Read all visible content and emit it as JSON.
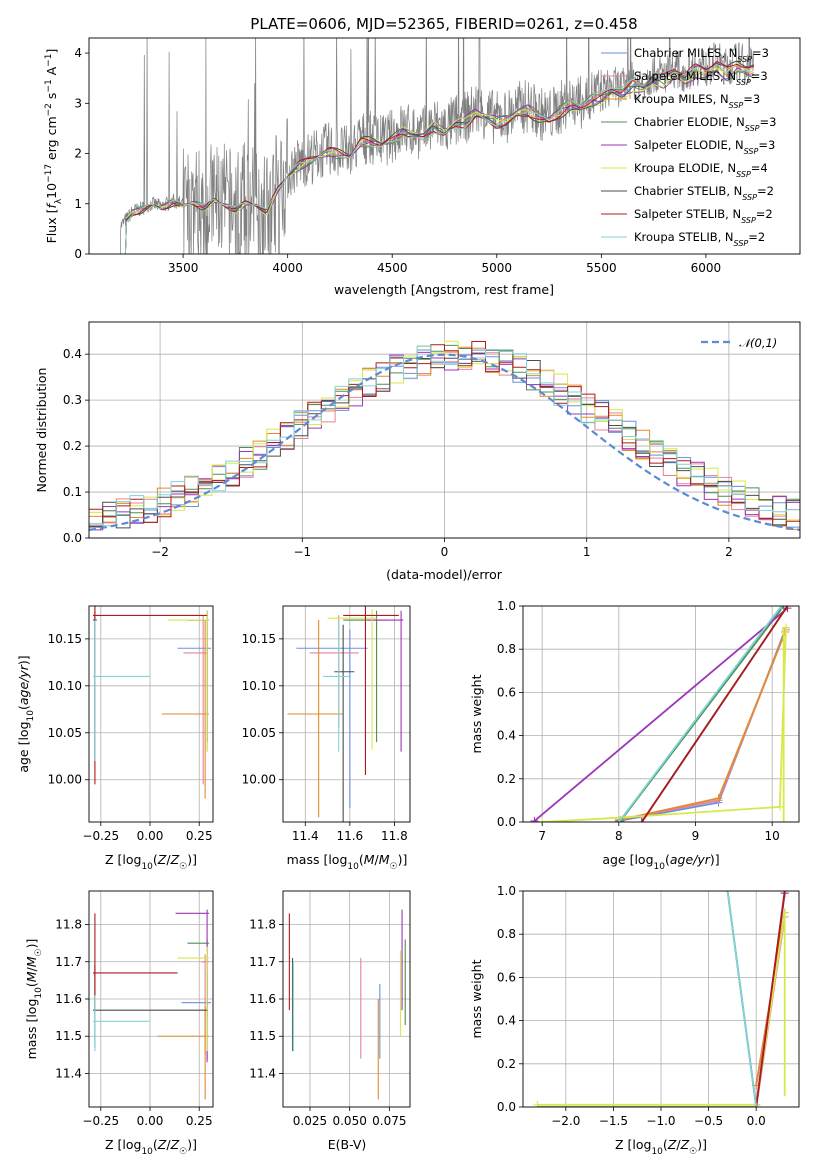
{
  "figure": {
    "title": "PLATE=0606, MJD=52365, FIBERID=0261, z=0.458"
  },
  "colors": {
    "Chabrier MILES": "#6a8fe0",
    "Salpeter MILES": "#e8829a",
    "Kroupa MILES": "#e28a2e",
    "Chabrier ELODIE": "#4f8f4f",
    "Salpeter ELODIE": "#9b36b8",
    "Kroupa ELODIE": "#d8e84a",
    "Chabrier STELIB": "#4d4d4d",
    "Salpeter STELIB": "#b01a1a",
    "Kroupa STELIB": "#7fd4d8",
    "data": "#808080",
    "gaussian": "#5b8ad6"
  },
  "chart_data": [
    {
      "id": "spectrum",
      "type": "line",
      "xlabel": "wavelength [Angstrom, rest frame]",
      "ylabel": "Flux [f_λ 10^-17 erg cm^-2 s^-1 A^-1]",
      "xlim": [
        3050,
        6450
      ],
      "ylim": [
        0,
        4.3
      ],
      "xticks": [
        3500,
        4000,
        4500,
        5000,
        5500,
        6000
      ],
      "yticks": [
        0,
        1,
        2,
        3,
        4
      ],
      "grid": false,
      "legend": "top-right",
      "legend_entries": [
        {
          "name": "Chabrier MILES, N_SSP=3",
          "base": "Chabrier MILES",
          "sub": "SSP",
          "suffix": "=3"
        },
        {
          "name": "Salpeter MILES, N_SSP=3",
          "base": "Salpeter MILES",
          "sub": "SSP",
          "suffix": "=3"
        },
        {
          "name": "Kroupa MILES, N_SSP=3",
          "base": "Kroupa MILES",
          "sub": "SSP",
          "suffix": "=3"
        },
        {
          "name": "Chabrier ELODIE, N_SSP=3",
          "base": "Chabrier ELODIE",
          "sub": "SSP",
          "suffix": "=3"
        },
        {
          "name": "Salpeter ELODIE, N_SSP=3",
          "base": "Salpeter ELODIE",
          "sub": "SSP",
          "suffix": "=3"
        },
        {
          "name": "Kroupa ELODIE, N_SSP=4",
          "base": "Kroupa ELODIE",
          "sub": "SSP",
          "suffix": "=4"
        },
        {
          "name": "Chabrier STELIB, N_SSP=2",
          "base": "Chabrier STELIB",
          "sub": "SSP",
          "suffix": "=2"
        },
        {
          "name": "Salpeter STELIB, N_SSP=2",
          "base": "Salpeter STELIB",
          "sub": "SSP",
          "suffix": "=2"
        },
        {
          "name": "Kroupa STELIB, N_SSP=2",
          "base": "Kroupa STELIB",
          "sub": "SSP",
          "suffix": "=2"
        }
      ],
      "model_curve": {
        "x": [
          3200,
          3230,
          3260,
          3300,
          3350,
          3400,
          3450,
          3500,
          3550,
          3600,
          3650,
          3700,
          3750,
          3800,
          3850,
          3900,
          3950,
          4000,
          4050,
          4100,
          4150,
          4200,
          4250,
          4300,
          4350,
          4400,
          4450,
          4500,
          4550,
          4600,
          4650,
          4700,
          4750,
          4800,
          4850,
          4900,
          4950,
          5000,
          5050,
          5100,
          5150,
          5200,
          5250,
          5300,
          5350,
          5400,
          5450,
          5500,
          5550,
          5600,
          5650,
          5700,
          5750,
          5800,
          5850,
          5900,
          5950,
          6000,
          6050,
          6100,
          6150,
          6200
        ],
        "y": [
          0.55,
          0.7,
          0.85,
          0.9,
          1.0,
          0.95,
          1.05,
          1.0,
          1.05,
          0.95,
          1.1,
          1.0,
          0.9,
          1.05,
          1.0,
          0.85,
          1.3,
          1.6,
          1.8,
          1.9,
          2.0,
          2.1,
          2.05,
          2.0,
          2.3,
          2.3,
          2.25,
          2.35,
          2.5,
          2.45,
          2.4,
          2.6,
          2.5,
          2.65,
          2.7,
          2.9,
          2.8,
          2.7,
          2.75,
          2.9,
          2.95,
          2.8,
          2.75,
          2.9,
          3.05,
          3.0,
          3.15,
          3.2,
          3.35,
          3.3,
          3.45,
          3.4,
          3.6,
          3.55,
          3.7,
          3.6,
          3.75,
          3.7,
          3.85,
          3.7,
          3.85,
          3.75
        ]
      }
    },
    {
      "id": "residuals",
      "type": "line",
      "xlabel": "(data-model)/error",
      "ylabel": "Normed distribution",
      "xlim": [
        -2.5,
        2.5
      ],
      "ylim": [
        0,
        0.47
      ],
      "xticks": [
        -2,
        -1,
        0,
        1,
        2
      ],
      "yticks": [
        0.0,
        0.1,
        0.2,
        0.3,
        0.4
      ],
      "grid": true,
      "legend": "top-right",
      "legend_entries": [
        {
          "name": "N(0,1)",
          "label": "𝒩(0,1)"
        }
      ],
      "histogram_center": 0.1,
      "histogram_width": 1.1
    },
    {
      "id": "age-Z",
      "type": "scatter",
      "xlabel": "Z [log10(Z/Z☉)]",
      "ylabel": "age [log10(age/yr)]",
      "xlim": [
        -0.31,
        0.32
      ],
      "ylim": [
        9.955,
        10.185
      ],
      "xticks": [
        -0.25,
        0.0,
        0.25
      ],
      "yticks": [
        10.0,
        10.05,
        10.1,
        10.15
      ],
      "grid": true
    },
    {
      "id": "age-mass",
      "type": "scatter",
      "xlabel": "mass [log10(M/M☉)]",
      "xlim": [
        11.3,
        11.87
      ],
      "ylim": [
        9.955,
        10.185
      ],
      "xticks": [
        11.4,
        11.6,
        11.8
      ],
      "yticks": [
        10.0,
        10.05,
        10.1,
        10.15
      ],
      "grid": true
    },
    {
      "id": "weight-age",
      "type": "line",
      "xlabel": "age [log10(age/yr)]",
      "ylabel": "mass weight",
      "xlim": [
        6.75,
        10.35
      ],
      "ylim": [
        0,
        1.0
      ],
      "xticks": [
        7,
        8,
        9,
        10
      ],
      "yticks": [
        0.0,
        0.2,
        0.4,
        0.6,
        0.8,
        1.0
      ],
      "grid": true
    },
    {
      "id": "mass-Z",
      "type": "scatter",
      "xlabel": "Z [log10(Z/Z☉)]",
      "ylabel": "mass [log10(M/M☉)]",
      "xlim": [
        -0.31,
        0.32
      ],
      "ylim": [
        11.31,
        11.89
      ],
      "xticks": [
        -0.25,
        0.0,
        0.25
      ],
      "yticks": [
        11.4,
        11.5,
        11.6,
        11.7,
        11.8
      ],
      "grid": true
    },
    {
      "id": "mass-ebv",
      "type": "scatter",
      "xlabel": "E(B-V)",
      "xlim": [
        0.008,
        0.088
      ],
      "ylim": [
        11.31,
        11.89
      ],
      "xticks": [
        0.025,
        0.05,
        0.075
      ],
      "xticklabels": [
        "0.025",
        "0.050",
        "0.075"
      ],
      "yticks": [
        11.4,
        11.5,
        11.6,
        11.7,
        11.8
      ],
      "grid": true
    },
    {
      "id": "weight-Z",
      "type": "line",
      "xlabel": "Z [log10(Z/Z☉)]",
      "ylabel": "mass weight",
      "xlim": [
        -2.45,
        0.45
      ],
      "ylim": [
        0,
        1.0
      ],
      "xticks": [
        -2.0,
        -1.5,
        -1.0,
        -0.5,
        0.0
      ],
      "yticks": [
        0.0,
        0.2,
        0.4,
        0.6,
        0.8,
        1.0
      ],
      "grid": true
    }
  ]
}
